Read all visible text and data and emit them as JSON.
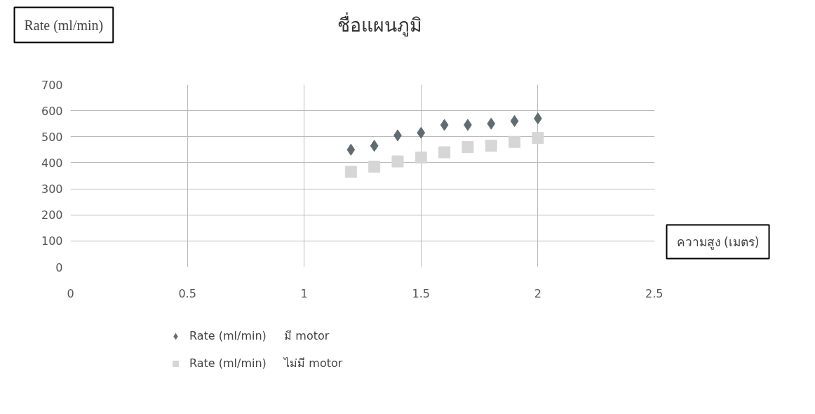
{
  "chart_data": {
    "type": "scatter",
    "title": "ชื่อแผนภูมิ",
    "ylabel": "Rate (ml/min)",
    "xlabel": "ความสูง (เมตร)",
    "x": [
      1.2,
      1.3,
      1.4,
      1.5,
      1.6,
      1.7,
      1.8,
      1.9,
      2.0
    ],
    "series": [
      {
        "name": "Rate (ml/min)     มี motor",
        "color": "#5f6d73",
        "marker": "diamond",
        "values": [
          450,
          465,
          505,
          515,
          545,
          545,
          550,
          560,
          570
        ]
      },
      {
        "name": "Rate (ml/min)     ไม่มี motor",
        "color": "#d6d6d6",
        "marker": "square",
        "values": [
          365,
          385,
          405,
          420,
          440,
          460,
          465,
          480,
          495
        ]
      }
    ],
    "xlim": [
      0,
      2.5
    ],
    "xticks": [
      0,
      0.5,
      1,
      1.5,
      2,
      2.5
    ],
    "ylim": [
      0,
      700
    ],
    "yticks": [
      0,
      100,
      200,
      300,
      400,
      500,
      600,
      700
    ],
    "grid": true,
    "legend": "bottom"
  }
}
